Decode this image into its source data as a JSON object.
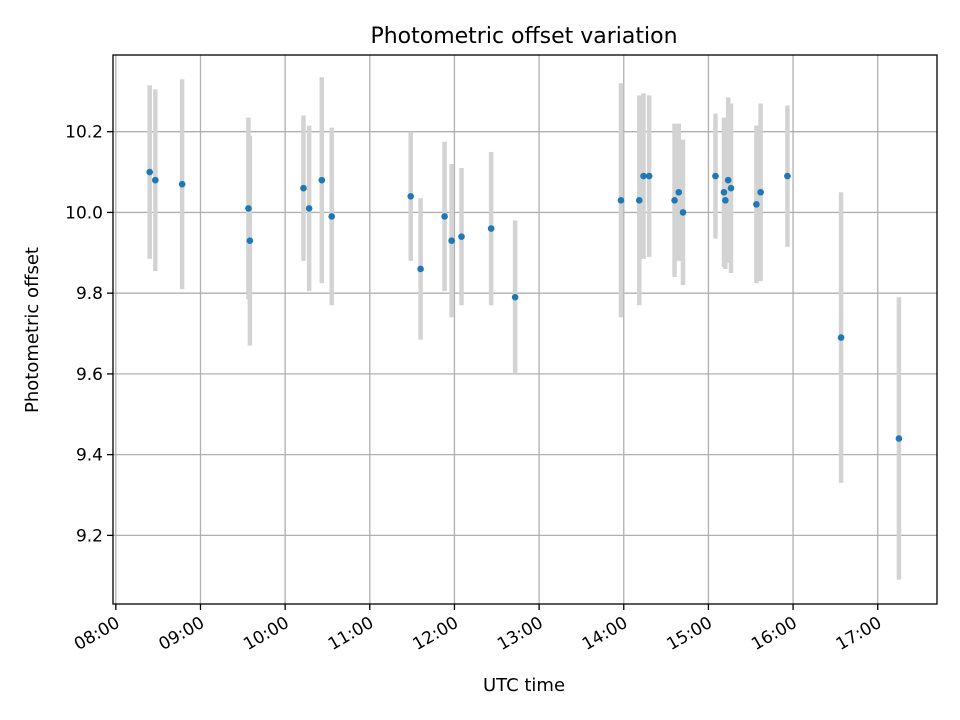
{
  "chart_data": {
    "type": "scatter",
    "title": "Photometric offset variation",
    "xlabel": "UTC time",
    "ylabel": "Photometric offset",
    "x_unit": "hour",
    "xlim": [
      "07:58",
      "17:42"
    ],
    "ylim": [
      9.03,
      10.39
    ],
    "xticks": [
      "08:00",
      "09:00",
      "10:00",
      "11:00",
      "12:00",
      "13:00",
      "14:00",
      "15:00",
      "16:00",
      "17:00"
    ],
    "yticks": [
      9.2,
      9.4,
      9.6,
      9.8,
      10.0,
      10.2
    ],
    "grid": true,
    "colors": {
      "point": "#1f77b4",
      "errorbar": "#d3d3d3",
      "grid": "#b0b0b0"
    },
    "points": [
      {
        "time": "08:24",
        "y": 10.1,
        "err": 0.215
      },
      {
        "time": "08:28",
        "y": 10.08,
        "err": 0.225
      },
      {
        "time": "08:47",
        "y": 10.07,
        "err": 0.26
      },
      {
        "time": "09:34",
        "y": 10.01,
        "err": 0.225
      },
      {
        "time": "09:35",
        "y": 9.93,
        "err": 0.26
      },
      {
        "time": "10:13",
        "y": 10.06,
        "err": 0.18
      },
      {
        "time": "10:17",
        "y": 10.01,
        "err": 0.205
      },
      {
        "time": "10:26",
        "y": 10.08,
        "err": 0.255
      },
      {
        "time": "10:33",
        "y": 9.99,
        "err": 0.22
      },
      {
        "time": "11:29",
        "y": 10.04,
        "err": 0.16
      },
      {
        "time": "11:36",
        "y": 9.86,
        "err": 0.175
      },
      {
        "time": "11:53",
        "y": 9.99,
        "err": 0.185
      },
      {
        "time": "11:58",
        "y": 9.93,
        "err": 0.19
      },
      {
        "time": "12:05",
        "y": 9.94,
        "err": 0.17
      },
      {
        "time": "12:26",
        "y": 9.96,
        "err": 0.19
      },
      {
        "time": "12:43",
        "y": 9.79,
        "err": 0.19
      },
      {
        "time": "13:58",
        "y": 10.03,
        "err": 0.29
      },
      {
        "time": "14:11",
        "y": 10.03,
        "err": 0.26
      },
      {
        "time": "14:14",
        "y": 10.09,
        "err": 0.205
      },
      {
        "time": "14:18",
        "y": 10.09,
        "err": 0.2
      },
      {
        "time": "14:36",
        "y": 10.03,
        "err": 0.19
      },
      {
        "time": "14:39",
        "y": 10.05,
        "err": 0.17
      },
      {
        "time": "14:42",
        "y": 10.0,
        "err": 0.18
      },
      {
        "time": "15:05",
        "y": 10.09,
        "err": 0.155
      },
      {
        "time": "15:11",
        "y": 10.05,
        "err": 0.185
      },
      {
        "time": "15:12",
        "y": 10.03,
        "err": 0.17
      },
      {
        "time": "15:14",
        "y": 10.08,
        "err": 0.205
      },
      {
        "time": "15:16",
        "y": 10.06,
        "err": 0.21
      },
      {
        "time": "15:34",
        "y": 10.02,
        "err": 0.195
      },
      {
        "time": "15:37",
        "y": 10.05,
        "err": 0.22
      },
      {
        "time": "15:56",
        "y": 10.09,
        "err": 0.175
      },
      {
        "time": "16:34",
        "y": 9.69,
        "err": 0.36
      },
      {
        "time": "17:15",
        "y": 9.44,
        "err": 0.35
      }
    ]
  }
}
